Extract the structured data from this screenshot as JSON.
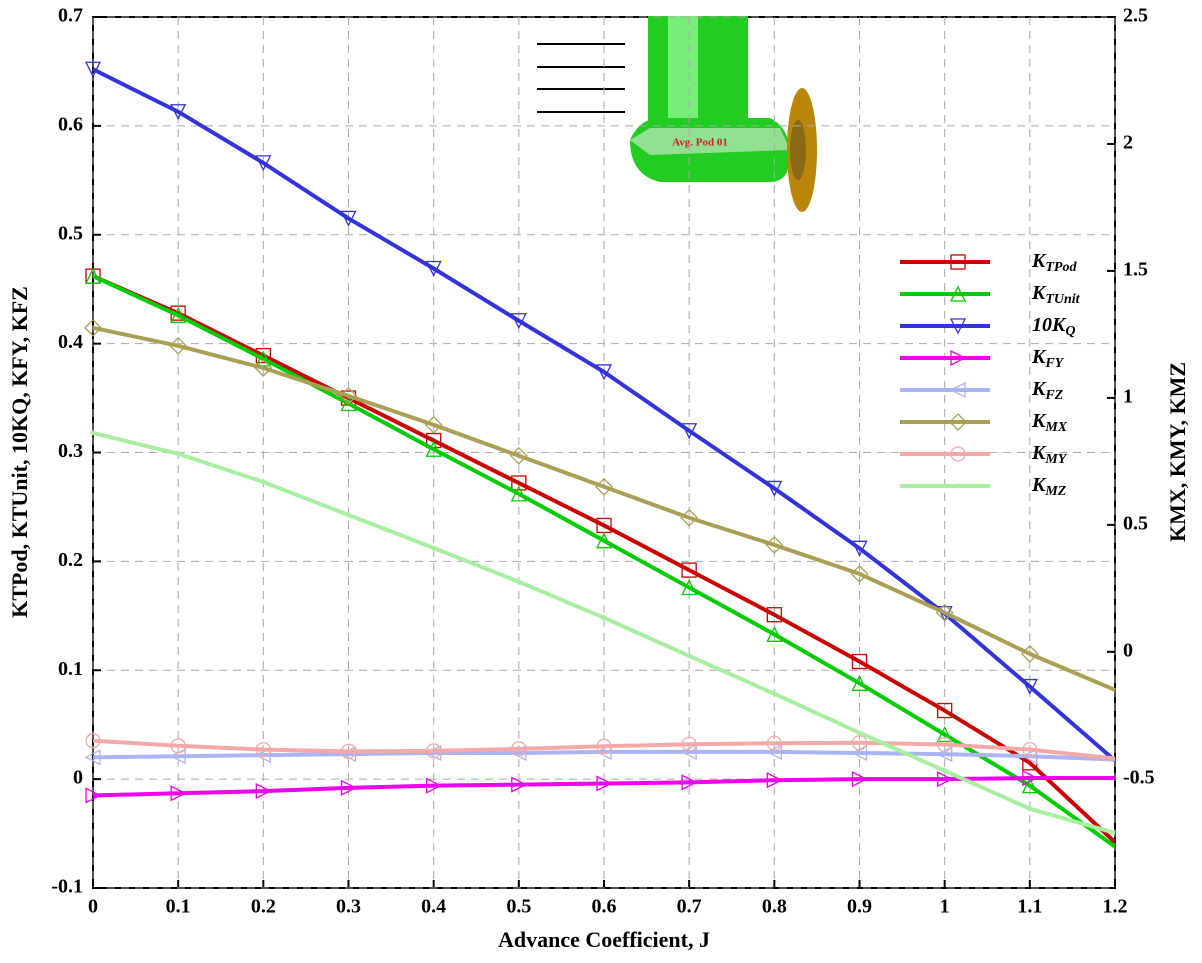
{
  "chart_data": {
    "type": "line",
    "annotation": "Avg. Pod 01",
    "x_label": "Advance Coefficient, J",
    "y_label": "KTPod, KTUnit, 10KQ, KFY, KFZ",
    "y2_label": "KMX, KMY, KMZ",
    "x": [
      0,
      0.1,
      0.2,
      0.3,
      0.4,
      0.5,
      0.6,
      0.7,
      0.8,
      0.9,
      1,
      1.1,
      1.2
    ],
    "xlim": [
      0,
      1.2
    ],
    "xticks": [
      0,
      0.1,
      0.2,
      0.3,
      0.4,
      0.5,
      0.6,
      0.7,
      0.8,
      0.9,
      1,
      1.1,
      1.2
    ],
    "ylim": [
      -0.1,
      0.7
    ],
    "yticks": [
      -0.1,
      0,
      0.1,
      0.2,
      0.3,
      0.4,
      0.5,
      0.6,
      0.7
    ],
    "y2lim": [
      -0.93,
      2.5
    ],
    "y2ticks": [
      -0.5,
      0,
      0.5,
      1,
      1.5,
      2,
      2.5
    ],
    "grid": true,
    "legend": "right",
    "series": [
      {
        "name": "KTPod",
        "color": "#cc0000",
        "marker": "square",
        "values": [
          0.462,
          0.428,
          0.389,
          0.35,
          0.311,
          0.272,
          0.233,
          0.192,
          0.151,
          0.108,
          0.063,
          0.015,
          -0.058
        ]
      },
      {
        "name": "KTUnit",
        "color": "#00cc00",
        "marker": "triangle-up",
        "values": [
          0.462,
          0.426,
          0.386,
          0.345,
          0.303,
          0.262,
          0.219,
          0.176,
          0.133,
          0.088,
          0.041,
          -0.006,
          -0.062
        ]
      },
      {
        "name": "10KQ",
        "color": "#3333dd",
        "marker": "triangle-down",
        "values": [
          0.652,
          0.613,
          0.566,
          0.515,
          0.469,
          0.421,
          0.374,
          0.32,
          0.267,
          0.212,
          0.152,
          0.085,
          0.017
        ]
      },
      {
        "name": "KFY",
        "color": "#ee00ee",
        "marker": "triangle-right",
        "values": [
          -0.015,
          -0.013,
          -0.011,
          -0.008,
          -0.006,
          -0.005,
          -0.004,
          -0.003,
          -0.001,
          0,
          0,
          0.001,
          0.001
        ]
      },
      {
        "name": "KFZ",
        "color": "#aab4f0",
        "marker": "triangle-left",
        "values": [
          0.02,
          0.021,
          0.022,
          0.023,
          0.024,
          0.024,
          0.025,
          0.025,
          0.025,
          0.024,
          0.023,
          0.021,
          0.018
        ]
      },
      {
        "name": "KMX",
        "color": "#aaa055",
        "marker": "diamond",
        "axis": "y2",
        "values": [
          1.276,
          1.205,
          1.118,
          1.008,
          0.894,
          0.772,
          0.65,
          0.528,
          0.421,
          0.307,
          0.154,
          -0.008,
          -0.15
        ]
      },
      {
        "name": "KMY",
        "color": "#f4a8a8",
        "marker": "circle",
        "axis": "y2",
        "values": [
          -0.35,
          -0.37,
          -0.385,
          -0.392,
          -0.39,
          -0.382,
          -0.372,
          -0.364,
          -0.36,
          -0.358,
          -0.365,
          -0.385,
          -0.42
        ]
      },
      {
        "name": "KMZ",
        "color": "#a8f0a0",
        "marker": "star",
        "axis": "y2",
        "values": [
          0.862,
          0.78,
          0.669,
          0.539,
          0.409,
          0.276,
          0.134,
          -0.016,
          -0.165,
          -0.319,
          -0.468,
          -0.618,
          -0.713
        ]
      }
    ]
  }
}
